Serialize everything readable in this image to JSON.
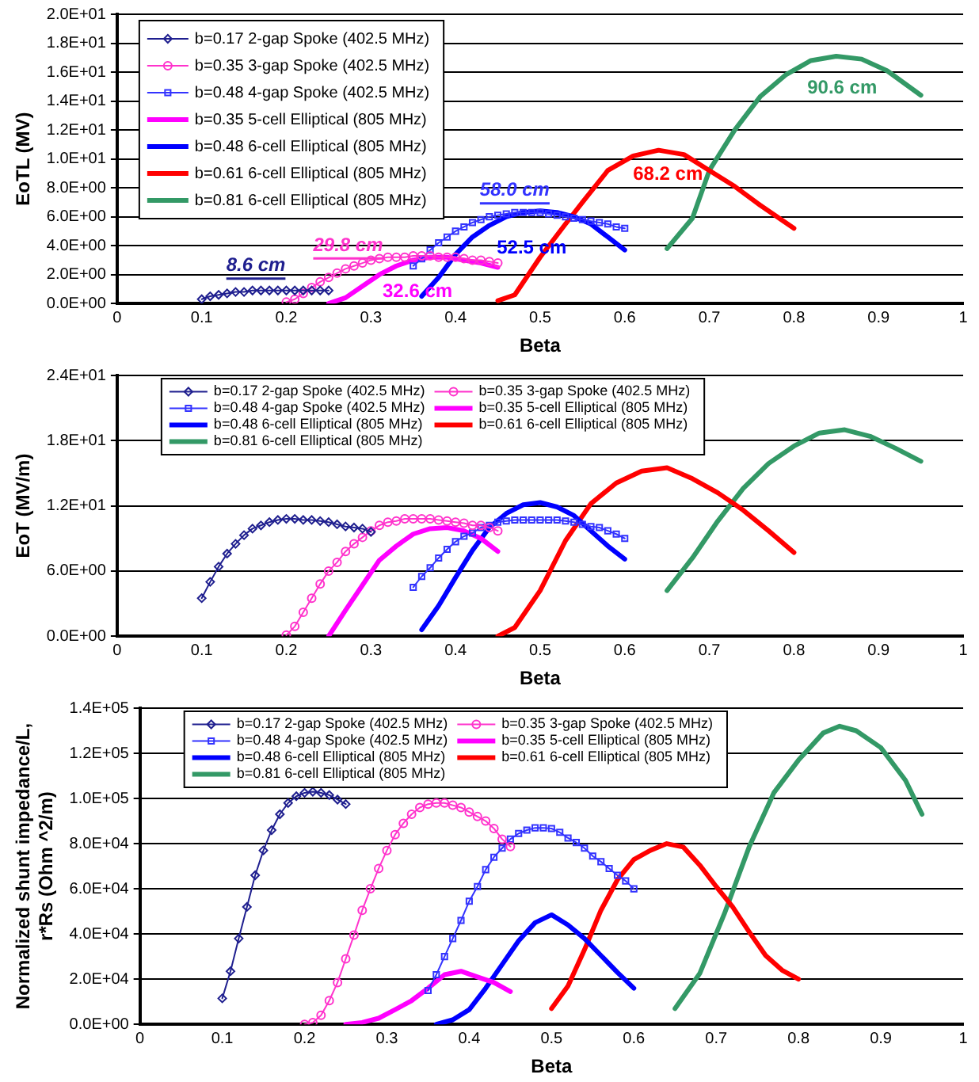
{
  "chart_data": [
    {
      "type": "line",
      "xlabel": "Beta",
      "ylabel": "EoTL (MV)",
      "xlim": [
        0,
        1
      ],
      "xticks": [
        0,
        0.1,
        0.2,
        0.3,
        0.4,
        0.5,
        0.6,
        0.7,
        0.8,
        0.9,
        1
      ],
      "ylim": [
        0,
        20
      ],
      "yticks": [
        {
          "value": 0,
          "label": "0.0E+00"
        },
        {
          "value": 2,
          "label": "2.0E+00"
        },
        {
          "value": 4,
          "label": "4.0E+00"
        },
        {
          "value": 6,
          "label": "6.0E+00"
        },
        {
          "value": 8,
          "label": "8.0E+00"
        },
        {
          "value": 10,
          "label": "1.0E+01"
        },
        {
          "value": 12,
          "label": "1.2E+01"
        },
        {
          "value": 14,
          "label": "1.4E+01"
        },
        {
          "value": 16,
          "label": "1.6E+01"
        },
        {
          "value": 18,
          "label": "1.8E+01"
        },
        {
          "value": 20,
          "label": "2.0E+01"
        }
      ],
      "grid": "y",
      "legend": "top left",
      "series": [
        {
          "name": "b=0.17 2-gap Spoke (402.5 MHz)",
          "color": "#1f1f8f",
          "marker": "diamond",
          "x": [
            0.1,
            0.11,
            0.12,
            0.13,
            0.14,
            0.15,
            0.16,
            0.17,
            0.18,
            0.19,
            0.2,
            0.21,
            0.22,
            0.23,
            0.24,
            0.25
          ],
          "values": [
            0.3,
            0.5,
            0.6,
            0.7,
            0.8,
            0.8,
            0.9,
            0.9,
            0.9,
            0.9,
            0.9,
            0.9,
            0.9,
            0.9,
            0.9,
            0.9
          ]
        },
        {
          "name": "b=0.35 3-gap Spoke (402.5 MHz)",
          "color": "#ff33cc",
          "marker": "circle",
          "x": [
            0.2,
            0.21,
            0.22,
            0.23,
            0.24,
            0.25,
            0.26,
            0.27,
            0.28,
            0.29,
            0.3,
            0.31,
            0.32,
            0.33,
            0.34,
            0.35,
            0.36,
            0.37,
            0.38,
            0.39,
            0.4,
            0.41,
            0.42,
            0.43,
            0.44,
            0.45
          ],
          "values": [
            0.1,
            0.3,
            0.7,
            1.1,
            1.5,
            1.8,
            2.1,
            2.4,
            2.6,
            2.8,
            3.0,
            3.1,
            3.2,
            3.2,
            3.2,
            3.3,
            3.3,
            3.3,
            3.2,
            3.2,
            3.2,
            3.1,
            3.0,
            3.0,
            2.9,
            2.8
          ]
        },
        {
          "name": "b=0.48 4-gap Spoke (402.5 MHz)",
          "color": "#3333ff",
          "marker": "square",
          "x": [
            0.35,
            0.36,
            0.37,
            0.38,
            0.39,
            0.4,
            0.41,
            0.42,
            0.43,
            0.44,
            0.45,
            0.46,
            0.47,
            0.48,
            0.49,
            0.5,
            0.51,
            0.52,
            0.53,
            0.54,
            0.55,
            0.56,
            0.57,
            0.58,
            0.59,
            0.6
          ],
          "values": [
            2.6,
            3.1,
            3.7,
            4.2,
            4.6,
            5.0,
            5.3,
            5.6,
            5.8,
            6.0,
            6.1,
            6.2,
            6.3,
            6.3,
            6.3,
            6.3,
            6.2,
            6.1,
            6.0,
            5.9,
            5.8,
            5.7,
            5.6,
            5.5,
            5.3,
            5.2
          ]
        },
        {
          "name": "b=0.35 5-cell Elliptical (805 MHz)",
          "color": "#ff00ff",
          "marker": "none",
          "x": [
            0.25,
            0.27,
            0.29,
            0.31,
            0.33,
            0.35,
            0.37,
            0.39,
            0.41,
            0.43,
            0.45
          ],
          "values": [
            0,
            0.4,
            1.2,
            2.0,
            2.6,
            3.0,
            3.2,
            3.2,
            3.0,
            2.8,
            2.5
          ]
        },
        {
          "name": "b=0.48 6-cell Elliptical (805 MHz)",
          "color": "#0000ff",
          "marker": "none",
          "x": [
            0.36,
            0.38,
            0.4,
            0.42,
            0.44,
            0.46,
            0.48,
            0.5,
            0.52,
            0.54,
            0.56,
            0.58,
            0.6
          ],
          "values": [
            0.5,
            1.8,
            3.4,
            4.6,
            5.4,
            6.0,
            6.3,
            6.4,
            6.3,
            6.0,
            5.5,
            4.6,
            3.7
          ]
        },
        {
          "name": "b=0.61 6-cell Elliptical (805 MHz)",
          "color": "#ff0000",
          "marker": "none",
          "x": [
            0.45,
            0.47,
            0.5,
            0.53,
            0.55,
            0.58,
            0.61,
            0.64,
            0.67,
            0.7,
            0.73,
            0.76,
            0.8
          ],
          "values": [
            0.2,
            0.6,
            3.2,
            5.5,
            7.0,
            9.2,
            10.2,
            10.6,
            10.3,
            9.2,
            8.1,
            6.8,
            5.2
          ]
        },
        {
          "name": "b=0.81 6-cell Elliptical (805 MHz)",
          "color": "#339966",
          "marker": "none",
          "x": [
            0.65,
            0.68,
            0.7,
            0.73,
            0.76,
            0.79,
            0.82,
            0.85,
            0.88,
            0.91,
            0.95
          ],
          "values": [
            3.8,
            5.9,
            9.2,
            12.0,
            14.3,
            15.8,
            16.8,
            17.1,
            16.9,
            16.1,
            14.4
          ]
        }
      ],
      "annotations": [
        "8.6 cm",
        "29.8 cm",
        "58.0 cm",
        "32.6 cm",
        "52.5 cm",
        "68.2 cm",
        "90.6 cm"
      ]
    },
    {
      "type": "line",
      "xlabel": "Beta",
      "ylabel": "EoT (MV/m)",
      "xlim": [
        0,
        1
      ],
      "xticks": [
        0,
        0.1,
        0.2,
        0.3,
        0.4,
        0.5,
        0.6,
        0.7,
        0.8,
        0.9,
        1
      ],
      "ylim": [
        0,
        24
      ],
      "yticks": [
        {
          "value": 0,
          "label": "0.0E+00"
        },
        {
          "value": 6,
          "label": "6.0E+00"
        },
        {
          "value": 12,
          "label": "1.2E+01"
        },
        {
          "value": 18,
          "label": "1.8E+01"
        },
        {
          "value": 24,
          "label": "2.4E+01"
        }
      ],
      "grid": "y",
      "legend": "top",
      "series": [
        {
          "name": "b=0.17 2-gap Spoke (402.5 MHz)",
          "color": "#1f1f8f",
          "marker": "diamond",
          "x": [
            0.1,
            0.11,
            0.12,
            0.13,
            0.14,
            0.15,
            0.16,
            0.17,
            0.18,
            0.19,
            0.2,
            0.21,
            0.22,
            0.23,
            0.24,
            0.25,
            0.26,
            0.27,
            0.28,
            0.29,
            0.3
          ],
          "values": [
            3.5,
            5.0,
            6.4,
            7.6,
            8.5,
            9.3,
            9.9,
            10.2,
            10.5,
            10.7,
            10.8,
            10.8,
            10.7,
            10.7,
            10.6,
            10.5,
            10.3,
            10.1,
            10.0,
            9.9,
            9.6
          ]
        },
        {
          "name": "b=0.35 3-gap Spoke (402.5 MHz)",
          "color": "#ff33cc",
          "marker": "circle",
          "x": [
            0.2,
            0.21,
            0.22,
            0.23,
            0.24,
            0.25,
            0.26,
            0.27,
            0.28,
            0.29,
            0.3,
            0.31,
            0.32,
            0.33,
            0.34,
            0.35,
            0.36,
            0.37,
            0.38,
            0.39,
            0.4,
            0.41,
            0.42,
            0.43,
            0.44,
            0.45
          ],
          "values": [
            0.1,
            0.9,
            2.2,
            3.5,
            4.8,
            6.0,
            6.8,
            7.8,
            8.5,
            9.1,
            9.7,
            10.2,
            10.5,
            10.6,
            10.8,
            10.8,
            10.8,
            10.8,
            10.7,
            10.6,
            10.5,
            10.4,
            10.2,
            10.2,
            10.0,
            9.7
          ]
        },
        {
          "name": "b=0.48 4-gap Spoke (402.5 MHz)",
          "color": "#3333ff",
          "marker": "square",
          "x": [
            0.35,
            0.36,
            0.37,
            0.38,
            0.39,
            0.4,
            0.41,
            0.42,
            0.43,
            0.44,
            0.45,
            0.46,
            0.47,
            0.48,
            0.49,
            0.5,
            0.51,
            0.52,
            0.53,
            0.54,
            0.55,
            0.56,
            0.57,
            0.58,
            0.59,
            0.6
          ],
          "values": [
            4.5,
            5.5,
            6.3,
            7.2,
            8.0,
            8.7,
            9.2,
            9.5,
            10.0,
            10.2,
            10.5,
            10.6,
            10.7,
            10.7,
            10.7,
            10.7,
            10.7,
            10.7,
            10.6,
            10.5,
            10.3,
            10.1,
            10.0,
            9.7,
            9.4,
            9.0
          ]
        },
        {
          "name": "b=0.35 5-cell Elliptical (805 MHz)",
          "color": "#ff00ff",
          "marker": "none",
          "x": [
            0.25,
            0.27,
            0.29,
            0.31,
            0.33,
            0.35,
            0.37,
            0.39,
            0.41,
            0.43,
            0.45
          ],
          "values": [
            0,
            2.4,
            4.7,
            7.0,
            8.3,
            9.4,
            9.9,
            10.0,
            9.7,
            9.0,
            7.8
          ]
        },
        {
          "name": "b=0.48 6-cell Elliptical (805 MHz)",
          "color": "#0000ff",
          "marker": "none",
          "x": [
            0.36,
            0.38,
            0.4,
            0.42,
            0.44,
            0.46,
            0.48,
            0.5,
            0.52,
            0.54,
            0.56,
            0.58,
            0.6
          ],
          "values": [
            0.6,
            2.8,
            5.4,
            7.9,
            10.0,
            11.3,
            12.1,
            12.3,
            11.9,
            11.1,
            9.7,
            8.3,
            7.1
          ]
        },
        {
          "name": "b=0.61 6-cell Elliptical (805 MHz)",
          "color": "#ff0000",
          "marker": "none",
          "x": [
            0.45,
            0.47,
            0.5,
            0.53,
            0.56,
            0.59,
            0.62,
            0.65,
            0.68,
            0.71,
            0.74,
            0.77,
            0.8
          ],
          "values": [
            0,
            0.8,
            4.2,
            8.8,
            12.2,
            14.1,
            15.2,
            15.5,
            14.5,
            13.2,
            11.6,
            9.7,
            7.7
          ]
        },
        {
          "name": "b=0.81 6-cell Elliptical (805 MHz)",
          "color": "#339966",
          "marker": "none",
          "x": [
            0.65,
            0.68,
            0.71,
            0.74,
            0.77,
            0.8,
            0.83,
            0.86,
            0.89,
            0.92,
            0.95
          ],
          "values": [
            4.2,
            7.2,
            10.6,
            13.6,
            15.9,
            17.5,
            18.7,
            19.0,
            18.4,
            17.3,
            16.1
          ]
        }
      ]
    },
    {
      "type": "line",
      "xlabel": "Beta",
      "ylabel": "Normalized shunt impedance/L, r*Rs (Ohm ^2/m)",
      "xlim": [
        0,
        1
      ],
      "xticks": [
        0,
        0.1,
        0.2,
        0.3,
        0.4,
        0.5,
        0.6,
        0.7,
        0.8,
        0.9,
        1
      ],
      "ylim": [
        0,
        140000
      ],
      "yticks": [
        {
          "value": 0,
          "label": "0.0E+00"
        },
        {
          "value": 20000,
          "label": "2.0E+04"
        },
        {
          "value": 40000,
          "label": "4.0E+04"
        },
        {
          "value": 60000,
          "label": "6.0E+04"
        },
        {
          "value": 80000,
          "label": "8.0E+04"
        },
        {
          "value": 100000,
          "label": "1.0E+05"
        },
        {
          "value": 120000,
          "label": "1.2E+05"
        },
        {
          "value": 140000,
          "label": "1.4E+05"
        }
      ],
      "grid": "y",
      "legend": "top",
      "series": [
        {
          "name": "b=0.17 2-gap Spoke (402.5 MHz)",
          "color": "#1f1f8f",
          "marker": "diamond",
          "x": [
            0.1,
            0.11,
            0.12,
            0.13,
            0.14,
            0.15,
            0.16,
            0.17,
            0.18,
            0.19,
            0.2,
            0.21,
            0.22,
            0.23,
            0.24,
            0.25
          ],
          "values": [
            11500,
            23500,
            38000,
            52000,
            66000,
            77000,
            86000,
            93000,
            98000,
            101000,
            102500,
            103000,
            102500,
            101500,
            99500,
            97500
          ]
        },
        {
          "name": "b=0.35 3-gap Spoke (402.5 MHz)",
          "color": "#ff33cc",
          "marker": "circle",
          "x": [
            0.2,
            0.21,
            0.22,
            0.23,
            0.24,
            0.25,
            0.26,
            0.27,
            0.28,
            0.29,
            0.3,
            0.31,
            0.32,
            0.33,
            0.34,
            0.35,
            0.36,
            0.37,
            0.38,
            0.39,
            0.4,
            0.41,
            0.42,
            0.43,
            0.44,
            0.45
          ],
          "values": [
            0,
            800,
            4000,
            10500,
            18500,
            29000,
            39500,
            50500,
            60000,
            69000,
            77000,
            84000,
            89000,
            93000,
            96000,
            97500,
            98000,
            98000,
            97000,
            96000,
            94000,
            92000,
            90000,
            86700,
            82000,
            78700
          ]
        },
        {
          "name": "b=0.48 4-gap Spoke (402.5 MHz)",
          "color": "#3333ff",
          "marker": "square",
          "x": [
            0.35,
            0.36,
            0.37,
            0.38,
            0.39,
            0.4,
            0.41,
            0.42,
            0.43,
            0.44,
            0.45,
            0.46,
            0.47,
            0.48,
            0.49,
            0.5,
            0.51,
            0.52,
            0.53,
            0.54,
            0.55,
            0.56,
            0.57,
            0.58,
            0.59,
            0.6
          ],
          "values": [
            15000,
            22000,
            30000,
            38000,
            46000,
            54500,
            61000,
            68500,
            74000,
            78000,
            82000,
            84500,
            86000,
            87000,
            87000,
            86700,
            85000,
            82500,
            80500,
            78000,
            74500,
            72000,
            69000,
            66000,
            63500,
            60000
          ]
        },
        {
          "name": "b=0.35 5-cell Elliptical (805 MHz)",
          "color": "#ff00ff",
          "marker": "none",
          "x": [
            0.25,
            0.27,
            0.29,
            0.31,
            0.33,
            0.35,
            0.37,
            0.39,
            0.41,
            0.43,
            0.45
          ],
          "values": [
            0,
            800,
            2700,
            6500,
            10500,
            16000,
            22000,
            23500,
            21000,
            18500,
            14500
          ]
        },
        {
          "name": "b=0.48 6-cell Elliptical (805 MHz)",
          "color": "#0000ff",
          "marker": "none",
          "x": [
            0.36,
            0.38,
            0.4,
            0.42,
            0.44,
            0.46,
            0.48,
            0.5,
            0.52,
            0.54,
            0.56,
            0.58,
            0.6
          ],
          "values": [
            0,
            2000,
            6500,
            16000,
            26500,
            37000,
            45000,
            48500,
            44000,
            38000,
            30500,
            23000,
            16000
          ]
        },
        {
          "name": "b=0.61 6-cell Elliptical (805 MHz)",
          "color": "#ff0000",
          "marker": "none",
          "x": [
            0.5,
            0.52,
            0.54,
            0.56,
            0.58,
            0.6,
            0.62,
            0.64,
            0.66,
            0.68,
            0.7,
            0.72,
            0.74,
            0.76,
            0.78,
            0.8
          ],
          "values": [
            7000,
            17000,
            33000,
            50500,
            64000,
            73000,
            77000,
            80000,
            78500,
            70500,
            61000,
            52000,
            41000,
            30500,
            24000,
            20000
          ]
        },
        {
          "name": "b=0.81 6-cell Elliptical (805 MHz)",
          "color": "#339966",
          "marker": "none",
          "x": [
            0.65,
            0.68,
            0.71,
            0.74,
            0.77,
            0.8,
            0.83,
            0.85,
            0.87,
            0.9,
            0.93,
            0.95
          ],
          "values": [
            7000,
            22500,
            49000,
            78500,
            102500,
            117000,
            129000,
            132000,
            130000,
            122500,
            108000,
            93000
          ]
        }
      ]
    }
  ]
}
